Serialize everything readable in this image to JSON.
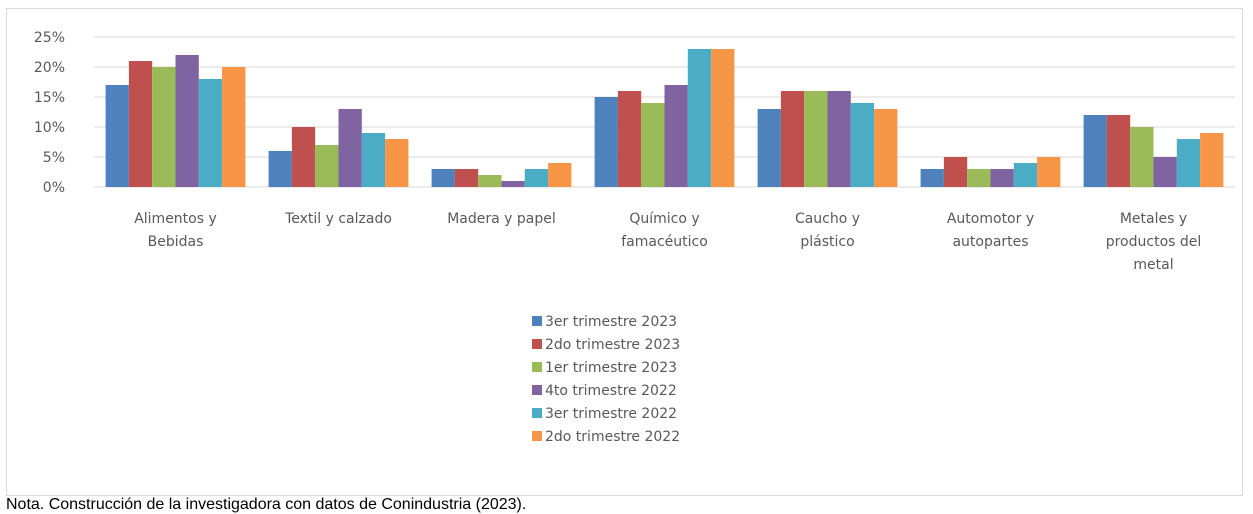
{
  "chart_data": {
    "type": "bar",
    "categories": [
      [
        "Alimentos y",
        "Bebidas"
      ],
      [
        "Textil y calzado"
      ],
      [
        "Madera y papel"
      ],
      [
        "Químico y",
        "famacéutico"
      ],
      [
        "Caucho y",
        "plástico"
      ],
      [
        "Automotor y",
        "autopartes"
      ],
      [
        "Metales y",
        "productos del",
        "metal"
      ]
    ],
    "series": [
      {
        "name": "3er trimestre 2023",
        "color": "#4f81bd",
        "values": [
          0.17,
          0.06,
          0.03,
          0.15,
          0.13,
          0.03,
          0.12
        ]
      },
      {
        "name": "2do trimestre 2023",
        "color": "#c0504d",
        "values": [
          0.21,
          0.1,
          0.03,
          0.16,
          0.16,
          0.05,
          0.12
        ]
      },
      {
        "name": "1er trimestre 2023",
        "color": "#9bbb59",
        "values": [
          0.2,
          0.07,
          0.02,
          0.14,
          0.16,
          0.03,
          0.1
        ]
      },
      {
        "name": "4to trimestre 2022",
        "color": "#8064a2",
        "values": [
          0.22,
          0.13,
          0.01,
          0.17,
          0.16,
          0.03,
          0.05
        ]
      },
      {
        "name": "3er trimestre 2022",
        "color": "#4bacc6",
        "values": [
          0.18,
          0.09,
          0.03,
          0.23,
          0.14,
          0.04,
          0.08
        ]
      },
      {
        "name": "2do trimestre 2022",
        "color": "#f79646",
        "values": [
          0.2,
          0.08,
          0.04,
          0.23,
          0.13,
          0.05,
          0.09
        ]
      }
    ],
    "yticks": [
      0,
      0.05,
      0.1,
      0.15,
      0.2,
      0.25
    ],
    "ytick_labels": [
      "0%",
      "5%",
      "10%",
      "15%",
      "20%",
      "25%"
    ],
    "ylim": [
      0,
      0.25
    ],
    "grid": true,
    "legend_position": "bottom"
  },
  "note": "Nota. Construcción de la investigadora con datos de Conindustria (2023)."
}
